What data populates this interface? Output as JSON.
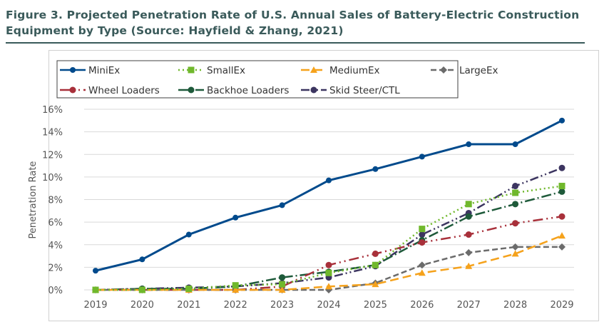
{
  "chart_data": {
    "type": "line",
    "title": "Figure 3. Projected Penetration Rate of U.S. Annual Sales of Battery-Electric Construction Equipment by Type (Source: Hayfield & Zhang, 2021)",
    "xlabel": "",
    "ylabel": "Penetration Rate",
    "ylim": [
      0,
      16
    ],
    "yticks": [
      "0%",
      "2%",
      "4%",
      "6%",
      "8%",
      "10%",
      "12%",
      "14%",
      "16%"
    ],
    "grid": true,
    "legend": "top",
    "categories": [
      "2019",
      "2020",
      "2021",
      "2022",
      "2023",
      "2024",
      "2025",
      "2026",
      "2027",
      "2028",
      "2029"
    ],
    "series": [
      {
        "name": "MiniEx",
        "color": "#004a8c",
        "values": [
          1.7,
          2.7,
          4.9,
          6.4,
          7.5,
          9.7,
          10.7,
          11.8,
          12.9,
          12.9,
          15.0
        ]
      },
      {
        "name": "SmallEx",
        "color": "#70b82c",
        "values": [
          0,
          0,
          0.1,
          0.4,
          0.5,
          1.5,
          2.2,
          5.4,
          7.6,
          8.6,
          9.2
        ]
      },
      {
        "name": "MediumEx",
        "color": "#f5a21c",
        "values": [
          0,
          0,
          0,
          0,
          0,
          0.3,
          0.5,
          1.5,
          2.1,
          3.2,
          4.8
        ]
      },
      {
        "name": "LargeEx",
        "color": "#6b6b6b",
        "values": [
          0,
          0,
          0,
          0,
          0,
          0,
          0.6,
          2.2,
          3.3,
          3.8,
          3.8
        ]
      },
      {
        "name": "Wheel Loaders",
        "color": "#a8303a",
        "values": [
          0,
          0,
          0,
          0,
          0.3,
          2.2,
          3.2,
          4.2,
          4.9,
          5.9,
          6.5
        ]
      },
      {
        "name": "Backhoe Loaders",
        "color": "#1e5a3a",
        "values": [
          0,
          0.1,
          0.1,
          0.3,
          1.1,
          1.6,
          2.2,
          4.4,
          6.5,
          7.6,
          8.7
        ]
      },
      {
        "name": "Skid Steer/CTL",
        "color": "#3c3560",
        "values": [
          0,
          0.1,
          0.2,
          0.3,
          0.6,
          1.1,
          2.1,
          4.9,
          6.8,
          9.2,
          10.8
        ]
      }
    ]
  }
}
